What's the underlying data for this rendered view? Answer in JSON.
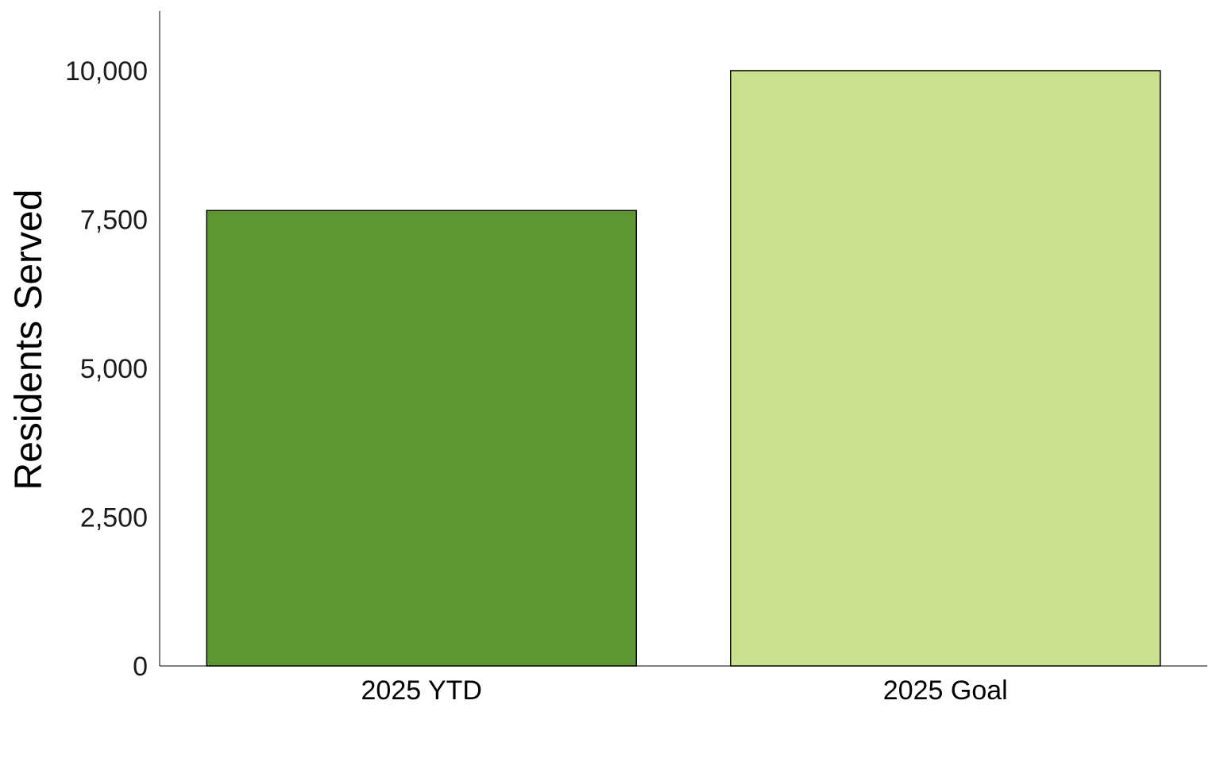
{
  "chart_data": {
    "type": "bar",
    "title": "",
    "xlabel": "",
    "ylabel": "Residents Served",
    "categories": [
      "2025 YTD",
      "2025 Goal"
    ],
    "values": [
      7650,
      10000
    ],
    "colors": [
      "#5e9732",
      "#cbe08d"
    ],
    "ylim": [
      0,
      11000
    ],
    "yticks": [
      0,
      2500,
      5000,
      7500,
      10000
    ],
    "ytick_labels": [
      "0",
      "2,500",
      "5,000",
      "7,500",
      "10,000"
    ],
    "grid": false,
    "legend": "none"
  }
}
